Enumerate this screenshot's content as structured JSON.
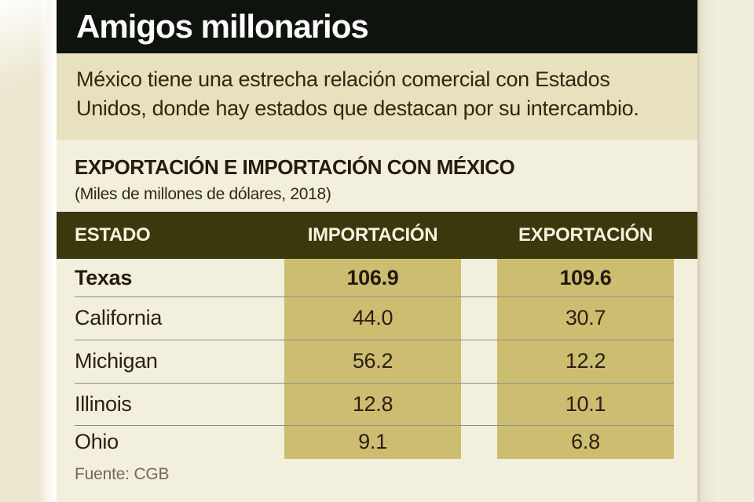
{
  "header": {
    "title": "Amigos millonarios"
  },
  "intro": {
    "text": "México tiene una estrecha relación comercial con Estados Unidos, donde hay estados que destacan por su intercambio."
  },
  "section": {
    "heading": "EXPORTACIÓN E IMPORTACIÓN CON MÉXICO",
    "subheading": "(Miles de millones de dólares, 2018)"
  },
  "chart_data": {
    "type": "table",
    "title": "EXPORTACIÓN E IMPORTACIÓN CON MÉXICO",
    "subtitle": "(Miles de millones de dólares, 2018)",
    "unit": "Miles de millones de dólares",
    "year": "2018",
    "columns": [
      "ESTADO",
      "IMPORTACIÓN",
      "EXPORTACIÓN"
    ],
    "rows": [
      {
        "state": "Texas",
        "importacion": "106.9",
        "exportacion": "109.6"
      },
      {
        "state": "California",
        "importacion": "44.0",
        "exportacion": "30.7"
      },
      {
        "state": "Michigan",
        "importacion": "56.2",
        "exportacion": "12.2"
      },
      {
        "state": "Illinois",
        "importacion": "12.8",
        "exportacion": "10.1"
      },
      {
        "state": "Ohio",
        "importacion": "9.1",
        "exportacion": "6.8"
      }
    ],
    "highlighted_row": "Texas",
    "legend_position": "none",
    "grid": "row-separators"
  },
  "footer": {
    "source": "Fuente: CGB"
  },
  "colors": {
    "title_bar_bg": "#0f130e",
    "title_text": "#ffffff",
    "intro_bg": "#e7e1be",
    "panel_bg": "#f2efdd",
    "table_header_bg": "#3b380e",
    "table_header_text": "#f6f3df",
    "value_column_bg": "#ccbd70",
    "body_text": "#2b2013",
    "separator": "#8f8e84",
    "side_strip": "#ebe6ce",
    "source_text": "#6f6a5b"
  }
}
